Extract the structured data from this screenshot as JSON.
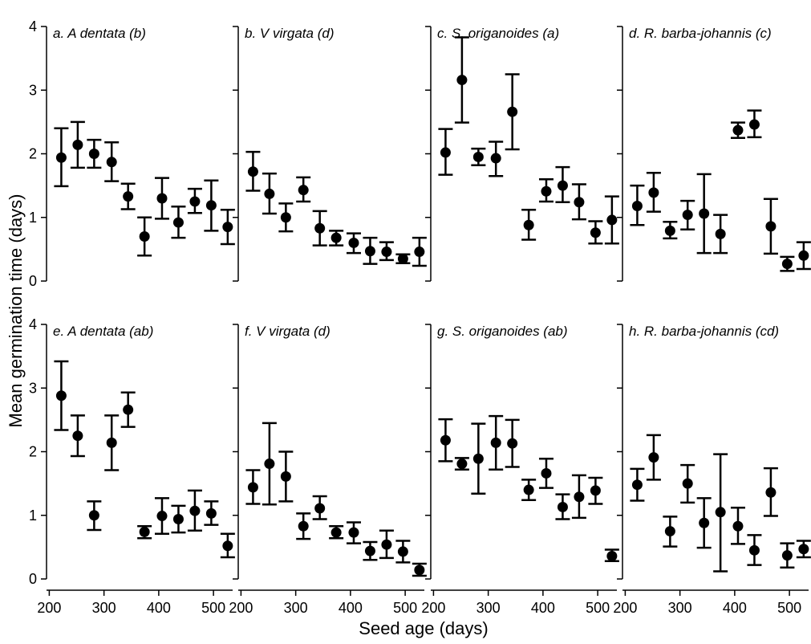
{
  "chart_data": {
    "type": "scatter",
    "xlabel": "Seed age (days)",
    "ylabel": "Mean germination time (days)",
    "xlim": [
      195,
      535
    ],
    "ylim": [
      0,
      4
    ],
    "xticks": [
      200,
      300,
      400,
      500
    ],
    "yticks": [
      0,
      1,
      2,
      3,
      4
    ],
    "x": [
      222,
      252,
      282,
      314,
      344,
      374,
      406,
      436,
      466,
      496,
      526
    ],
    "panels": [
      {
        "title": "a. A dentata (b)",
        "points": [
          {
            "x": 222,
            "y": 1.94,
            "lo": 1.49,
            "hi": 2.4
          },
          {
            "x": 252,
            "y": 2.14,
            "lo": 1.78,
            "hi": 2.5
          },
          {
            "x": 282,
            "y": 2.0,
            "lo": 1.78,
            "hi": 2.22
          },
          {
            "x": 314,
            "y": 1.87,
            "lo": 1.57,
            "hi": 2.18
          },
          {
            "x": 344,
            "y": 1.33,
            "lo": 1.13,
            "hi": 1.53
          },
          {
            "x": 374,
            "y": 0.7,
            "lo": 0.4,
            "hi": 1.0
          },
          {
            "x": 406,
            "y": 1.3,
            "lo": 0.98,
            "hi": 1.62
          },
          {
            "x": 436,
            "y": 0.92,
            "lo": 0.68,
            "hi": 1.17
          },
          {
            "x": 466,
            "y": 1.25,
            "lo": 1.07,
            "hi": 1.45
          },
          {
            "x": 496,
            "y": 1.19,
            "lo": 0.79,
            "hi": 1.58
          },
          {
            "x": 526,
            "y": 0.85,
            "lo": 0.58,
            "hi": 1.12
          }
        ]
      },
      {
        "title": "b. V virgata (d)",
        "points": [
          {
            "x": 222,
            "y": 1.72,
            "lo": 1.42,
            "hi": 2.03
          },
          {
            "x": 252,
            "y": 1.37,
            "lo": 1.06,
            "hi": 1.69
          },
          {
            "x": 282,
            "y": 1.0,
            "lo": 0.78,
            "hi": 1.22
          },
          {
            "x": 314,
            "y": 1.43,
            "lo": 1.25,
            "hi": 1.63
          },
          {
            "x": 344,
            "y": 0.83,
            "lo": 0.56,
            "hi": 1.1
          },
          {
            "x": 374,
            "y": 0.68,
            "lo": 0.56,
            "hi": 0.79
          },
          {
            "x": 406,
            "y": 0.6,
            "lo": 0.44,
            "hi": 0.75
          },
          {
            "x": 436,
            "y": 0.47,
            "lo": 0.27,
            "hi": 0.68
          },
          {
            "x": 466,
            "y": 0.46,
            "lo": 0.33,
            "hi": 0.61
          },
          {
            "x": 496,
            "y": 0.35,
            "lo": 0.28,
            "hi": 0.42
          },
          {
            "x": 526,
            "y": 0.46,
            "lo": 0.24,
            "hi": 0.68
          }
        ]
      },
      {
        "title": "c. S. origanoides (a)",
        "points": [
          {
            "x": 222,
            "y": 2.02,
            "lo": 1.67,
            "hi": 2.39
          },
          {
            "x": 252,
            "y": 3.16,
            "lo": 2.49,
            "hi": 3.83
          },
          {
            "x": 282,
            "y": 1.95,
            "lo": 1.82,
            "hi": 2.08
          },
          {
            "x": 314,
            "y": 1.93,
            "lo": 1.65,
            "hi": 2.19
          },
          {
            "x": 344,
            "y": 2.66,
            "lo": 2.07,
            "hi": 3.25
          },
          {
            "x": 374,
            "y": 0.88,
            "lo": 0.65,
            "hi": 1.12
          },
          {
            "x": 406,
            "y": 1.41,
            "lo": 1.25,
            "hi": 1.6
          },
          {
            "x": 436,
            "y": 1.5,
            "lo": 1.24,
            "hi": 1.79
          },
          {
            "x": 466,
            "y": 1.24,
            "lo": 0.97,
            "hi": 1.52
          },
          {
            "x": 496,
            "y": 0.76,
            "lo": 0.59,
            "hi": 0.94
          },
          {
            "x": 526,
            "y": 0.96,
            "lo": 0.59,
            "hi": 1.33
          }
        ]
      },
      {
        "title": "d. R. barba-johannis (c)",
        "points": [
          {
            "x": 222,
            "y": 1.18,
            "lo": 0.88,
            "hi": 1.5
          },
          {
            "x": 252,
            "y": 1.39,
            "lo": 1.09,
            "hi": 1.7
          },
          {
            "x": 282,
            "y": 0.79,
            "lo": 0.67,
            "hi": 0.93
          },
          {
            "x": 314,
            "y": 1.04,
            "lo": 0.81,
            "hi": 1.26
          },
          {
            "x": 344,
            "y": 1.06,
            "lo": 0.44,
            "hi": 1.68
          },
          {
            "x": 374,
            "y": 0.74,
            "lo": 0.44,
            "hi": 1.04
          },
          {
            "x": 406,
            "y": 2.37,
            "lo": 2.25,
            "hi": 2.49
          },
          {
            "x": 436,
            "y": 2.46,
            "lo": 2.26,
            "hi": 2.68
          },
          {
            "x": 466,
            "y": 0.86,
            "lo": 0.43,
            "hi": 1.29
          },
          {
            "x": 496,
            "y": 0.27,
            "lo": 0.16,
            "hi": 0.38
          },
          {
            "x": 526,
            "y": 0.4,
            "lo": 0.19,
            "hi": 0.61
          }
        ]
      },
      {
        "title": "e. A dentata (ab)",
        "points": [
          {
            "x": 222,
            "y": 2.88,
            "lo": 2.34,
            "hi": 3.42
          },
          {
            "x": 252,
            "y": 2.25,
            "lo": 1.93,
            "hi": 2.57
          },
          {
            "x": 282,
            "y": 1.0,
            "lo": 0.77,
            "hi": 1.22
          },
          {
            "x": 314,
            "y": 2.14,
            "lo": 1.71,
            "hi": 2.57
          },
          {
            "x": 344,
            "y": 2.66,
            "lo": 2.39,
            "hi": 2.93
          },
          {
            "x": 374,
            "y": 0.74,
            "lo": 0.64,
            "hi": 0.83
          },
          {
            "x": 406,
            "y": 0.99,
            "lo": 0.71,
            "hi": 1.27
          },
          {
            "x": 436,
            "y": 0.94,
            "lo": 0.73,
            "hi": 1.15
          },
          {
            "x": 466,
            "y": 1.07,
            "lo": 0.76,
            "hi": 1.39
          },
          {
            "x": 496,
            "y": 1.03,
            "lo": 0.85,
            "hi": 1.22
          },
          {
            "x": 526,
            "y": 0.52,
            "lo": 0.34,
            "hi": 0.71
          }
        ]
      },
      {
        "title": "f. V virgata (d)",
        "points": [
          {
            "x": 222,
            "y": 1.44,
            "lo": 1.18,
            "hi": 1.71
          },
          {
            "x": 252,
            "y": 1.81,
            "lo": 1.17,
            "hi": 2.45
          },
          {
            "x": 282,
            "y": 1.61,
            "lo": 1.22,
            "hi": 2.0
          },
          {
            "x": 314,
            "y": 0.83,
            "lo": 0.63,
            "hi": 1.03
          },
          {
            "x": 344,
            "y": 1.11,
            "lo": 0.94,
            "hi": 1.3
          },
          {
            "x": 374,
            "y": 0.73,
            "lo": 0.64,
            "hi": 0.83
          },
          {
            "x": 406,
            "y": 0.73,
            "lo": 0.56,
            "hi": 0.89
          },
          {
            "x": 436,
            "y": 0.44,
            "lo": 0.3,
            "hi": 0.58
          },
          {
            "x": 466,
            "y": 0.54,
            "lo": 0.33,
            "hi": 0.76
          },
          {
            "x": 496,
            "y": 0.43,
            "lo": 0.26,
            "hi": 0.6
          },
          {
            "x": 526,
            "y": 0.14,
            "lo": 0.05,
            "hi": 0.24
          }
        ]
      },
      {
        "title": "g. S. origanoides (ab)",
        "points": [
          {
            "x": 222,
            "y": 2.18,
            "lo": 1.85,
            "hi": 2.51
          },
          {
            "x": 252,
            "y": 1.81,
            "lo": 1.72,
            "hi": 1.9
          },
          {
            "x": 282,
            "y": 1.89,
            "lo": 1.34,
            "hi": 2.44
          },
          {
            "x": 314,
            "y": 2.14,
            "lo": 1.72,
            "hi": 2.56
          },
          {
            "x": 344,
            "y": 2.13,
            "lo": 1.76,
            "hi": 2.5
          },
          {
            "x": 374,
            "y": 1.4,
            "lo": 1.24,
            "hi": 1.56
          },
          {
            "x": 406,
            "y": 1.66,
            "lo": 1.43,
            "hi": 1.89
          },
          {
            "x": 436,
            "y": 1.13,
            "lo": 0.94,
            "hi": 1.33
          },
          {
            "x": 466,
            "y": 1.29,
            "lo": 0.96,
            "hi": 1.63
          },
          {
            "x": 496,
            "y": 1.39,
            "lo": 1.18,
            "hi": 1.59
          },
          {
            "x": 526,
            "y": 0.36,
            "lo": 0.28,
            "hi": 0.46
          }
        ]
      },
      {
        "title": "h. R. barba-johannis (cd)",
        "points": [
          {
            "x": 222,
            "y": 1.48,
            "lo": 1.23,
            "hi": 1.73
          },
          {
            "x": 252,
            "y": 1.91,
            "lo": 1.56,
            "hi": 2.26
          },
          {
            "x": 282,
            "y": 0.75,
            "lo": 0.51,
            "hi": 0.98
          },
          {
            "x": 314,
            "y": 1.5,
            "lo": 1.2,
            "hi": 1.79
          },
          {
            "x": 344,
            "y": 0.88,
            "lo": 0.49,
            "hi": 1.27
          },
          {
            "x": 374,
            "y": 1.05,
            "lo": 0.12,
            "hi": 1.96
          },
          {
            "x": 406,
            "y": 0.83,
            "lo": 0.55,
            "hi": 1.12
          },
          {
            "x": 436,
            "y": 0.45,
            "lo": 0.22,
            "hi": 0.69
          },
          {
            "x": 466,
            "y": 1.36,
            "lo": 0.99,
            "hi": 1.74
          },
          {
            "x": 496,
            "y": 0.37,
            "lo": 0.18,
            "hi": 0.56
          },
          {
            "x": 526,
            "y": 0.47,
            "lo": 0.34,
            "hi": 0.6
          }
        ]
      }
    ]
  }
}
